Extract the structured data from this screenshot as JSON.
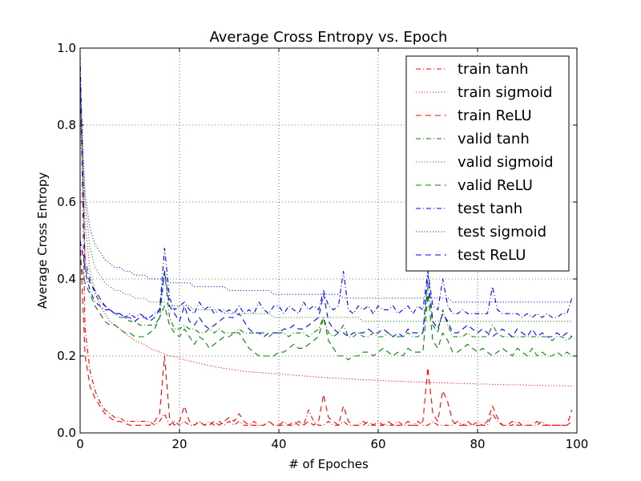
{
  "chart_data": {
    "type": "line",
    "title": "Average Cross Entropy vs. Epoch",
    "xlabel": "# of Epoches",
    "ylabel": "Average Cross Entropy",
    "xlim": [
      0,
      100
    ],
    "ylim": [
      0.0,
      1.0
    ],
    "grid": true,
    "legend_position": "top-right",
    "x_ticks": [
      "0",
      "20",
      "40",
      "60",
      "80",
      "100"
    ],
    "y_ticks": [
      "0.0",
      "0.2",
      "0.4",
      "0.6",
      "0.8",
      "1.0"
    ],
    "x": [
      0,
      1,
      2,
      3,
      4,
      5,
      6,
      7,
      8,
      9,
      10,
      11,
      12,
      13,
      14,
      15,
      16,
      17,
      18,
      19,
      20,
      21,
      22,
      23,
      24,
      25,
      26,
      27,
      28,
      29,
      30,
      31,
      32,
      33,
      34,
      35,
      36,
      37,
      38,
      39,
      40,
      41,
      42,
      43,
      44,
      45,
      46,
      47,
      48,
      49,
      50,
      51,
      52,
      53,
      54,
      55,
      56,
      57,
      58,
      59,
      60,
      61,
      62,
      63,
      64,
      65,
      66,
      67,
      68,
      69,
      70,
      71,
      72,
      73,
      74,
      75,
      76,
      77,
      78,
      79,
      80,
      81,
      82,
      83,
      84,
      85,
      86,
      87,
      88,
      89,
      90,
      91,
      92,
      93,
      94,
      95,
      96,
      97,
      98,
      99
    ],
    "series": [
      {
        "name": "train tanh",
        "color": "#ff0000",
        "dash": "dashdot",
        "values": [
          0.95,
          0.27,
          0.16,
          0.11,
          0.08,
          0.06,
          0.05,
          0.04,
          0.04,
          0.03,
          0.03,
          0.03,
          0.03,
          0.03,
          0.03,
          0.02,
          0.03,
          0.05,
          0.02,
          0.03,
          0.02,
          0.03,
          0.02,
          0.02,
          0.03,
          0.02,
          0.03,
          0.02,
          0.03,
          0.02,
          0.03,
          0.02,
          0.03,
          0.02,
          0.02,
          0.03,
          0.02,
          0.02,
          0.03,
          0.02,
          0.02,
          0.03,
          0.02,
          0.02,
          0.03,
          0.02,
          0.06,
          0.03,
          0.02,
          0.02,
          0.03,
          0.02,
          0.02,
          0.03,
          0.02,
          0.02,
          0.02,
          0.03,
          0.02,
          0.02,
          0.03,
          0.02,
          0.02,
          0.02,
          0.03,
          0.02,
          0.02,
          0.02,
          0.03,
          0.02,
          0.02,
          0.03,
          0.02,
          0.02,
          0.02,
          0.02,
          0.03,
          0.02,
          0.02,
          0.02,
          0.03,
          0.02,
          0.02,
          0.05,
          0.03,
          0.02,
          0.02,
          0.02,
          0.03,
          0.02,
          0.02,
          0.02,
          0.02,
          0.03,
          0.02,
          0.02,
          0.02,
          0.02,
          0.02,
          0.03
        ]
      },
      {
        "name": "train sigmoid",
        "color": "#ff0000",
        "dash": "dotted",
        "values": [
          0.82,
          0.55,
          0.42,
          0.37,
          0.33,
          0.31,
          0.29,
          0.28,
          0.27,
          0.26,
          0.25,
          0.24,
          0.235,
          0.23,
          0.22,
          0.215,
          0.21,
          0.205,
          0.2,
          0.198,
          0.195,
          0.19,
          0.187,
          0.184,
          0.181,
          0.178,
          0.175,
          0.172,
          0.17,
          0.168,
          0.166,
          0.164,
          0.162,
          0.16,
          0.159,
          0.158,
          0.157,
          0.156,
          0.155,
          0.154,
          0.153,
          0.152,
          0.151,
          0.15,
          0.149,
          0.148,
          0.147,
          0.146,
          0.145,
          0.144,
          0.143,
          0.143,
          0.142,
          0.141,
          0.14,
          0.14,
          0.139,
          0.138,
          0.138,
          0.137,
          0.136,
          0.136,
          0.135,
          0.135,
          0.134,
          0.134,
          0.133,
          0.133,
          0.132,
          0.132,
          0.131,
          0.131,
          0.13,
          0.13,
          0.13,
          0.129,
          0.129,
          0.128,
          0.128,
          0.128,
          0.127,
          0.127,
          0.127,
          0.126,
          0.126,
          0.126,
          0.125,
          0.125,
          0.125,
          0.125,
          0.124,
          0.124,
          0.124,
          0.124,
          0.123,
          0.123,
          0.123,
          0.123,
          0.122,
          0.122
        ]
      },
      {
        "name": "train ReLU",
        "color": "#ff0000",
        "dash": "dashed",
        "values": [
          0.5,
          0.2,
          0.12,
          0.09,
          0.07,
          0.05,
          0.04,
          0.03,
          0.03,
          0.025,
          0.02,
          0.02,
          0.02,
          0.02,
          0.02,
          0.03,
          0.05,
          0.2,
          0.04,
          0.02,
          0.03,
          0.07,
          0.03,
          0.02,
          0.03,
          0.02,
          0.02,
          0.03,
          0.02,
          0.03,
          0.04,
          0.03,
          0.05,
          0.03,
          0.02,
          0.02,
          0.02,
          0.02,
          0.03,
          0.02,
          0.02,
          0.02,
          0.02,
          0.03,
          0.02,
          0.02,
          0.03,
          0.02,
          0.03,
          0.1,
          0.04,
          0.03,
          0.02,
          0.07,
          0.03,
          0.02,
          0.02,
          0.02,
          0.03,
          0.02,
          0.02,
          0.02,
          0.03,
          0.02,
          0.02,
          0.02,
          0.03,
          0.02,
          0.02,
          0.03,
          0.17,
          0.05,
          0.03,
          0.11,
          0.08,
          0.03,
          0.02,
          0.02,
          0.03,
          0.02,
          0.02,
          0.02,
          0.03,
          0.07,
          0.04,
          0.02,
          0.02,
          0.03,
          0.02,
          0.02,
          0.02,
          0.02,
          0.03,
          0.02,
          0.02,
          0.02,
          0.02,
          0.02,
          0.02,
          0.06
        ]
      },
      {
        "name": "valid tanh",
        "color": "#008000",
        "dash": "dashdot",
        "values": [
          0.92,
          0.45,
          0.4,
          0.36,
          0.34,
          0.33,
          0.32,
          0.31,
          0.3,
          0.3,
          0.29,
          0.29,
          0.28,
          0.28,
          0.28,
          0.28,
          0.3,
          0.42,
          0.3,
          0.27,
          0.27,
          0.28,
          0.27,
          0.27,
          0.26,
          0.26,
          0.27,
          0.26,
          0.27,
          0.26,
          0.26,
          0.26,
          0.27,
          0.26,
          0.26,
          0.26,
          0.26,
          0.26,
          0.25,
          0.26,
          0.26,
          0.26,
          0.25,
          0.26,
          0.26,
          0.26,
          0.25,
          0.26,
          0.27,
          0.3,
          0.26,
          0.25,
          0.26,
          0.28,
          0.25,
          0.25,
          0.26,
          0.25,
          0.25,
          0.26,
          0.25,
          0.25,
          0.26,
          0.25,
          0.25,
          0.25,
          0.26,
          0.25,
          0.25,
          0.26,
          0.38,
          0.28,
          0.26,
          0.32,
          0.28,
          0.25,
          0.25,
          0.25,
          0.26,
          0.25,
          0.25,
          0.25,
          0.25,
          0.28,
          0.26,
          0.25,
          0.25,
          0.25,
          0.25,
          0.25,
          0.25,
          0.25,
          0.25,
          0.25,
          0.25,
          0.24,
          0.25,
          0.25,
          0.24,
          0.25
        ]
      },
      {
        "name": "valid sigmoid",
        "color": "#008000",
        "dash": "dotted",
        "values": [
          0.85,
          0.6,
          0.48,
          0.43,
          0.41,
          0.39,
          0.38,
          0.37,
          0.37,
          0.36,
          0.36,
          0.35,
          0.35,
          0.35,
          0.34,
          0.34,
          0.34,
          0.34,
          0.33,
          0.33,
          0.33,
          0.33,
          0.33,
          0.32,
          0.32,
          0.32,
          0.32,
          0.32,
          0.32,
          0.32,
          0.31,
          0.31,
          0.31,
          0.31,
          0.31,
          0.31,
          0.31,
          0.31,
          0.31,
          0.3,
          0.3,
          0.3,
          0.3,
          0.3,
          0.3,
          0.3,
          0.3,
          0.3,
          0.3,
          0.3,
          0.3,
          0.3,
          0.3,
          0.3,
          0.3,
          0.3,
          0.3,
          0.29,
          0.29,
          0.29,
          0.29,
          0.29,
          0.29,
          0.29,
          0.29,
          0.29,
          0.29,
          0.29,
          0.29,
          0.29,
          0.29,
          0.29,
          0.29,
          0.29,
          0.29,
          0.29,
          0.29,
          0.29,
          0.29,
          0.29,
          0.29,
          0.29,
          0.29,
          0.29,
          0.29,
          0.29,
          0.29,
          0.29,
          0.29,
          0.29,
          0.29,
          0.29,
          0.29,
          0.29,
          0.29,
          0.29,
          0.29,
          0.29,
          0.29,
          0.29
        ]
      },
      {
        "name": "valid ReLU",
        "color": "#008000",
        "dash": "dashed",
        "values": [
          0.45,
          0.39,
          0.36,
          0.33,
          0.31,
          0.29,
          0.28,
          0.28,
          0.27,
          0.26,
          0.26,
          0.25,
          0.25,
          0.25,
          0.26,
          0.27,
          0.3,
          0.33,
          0.28,
          0.26,
          0.25,
          0.27,
          0.25,
          0.23,
          0.25,
          0.24,
          0.22,
          0.23,
          0.24,
          0.25,
          0.25,
          0.26,
          0.26,
          0.24,
          0.22,
          0.21,
          0.2,
          0.2,
          0.2,
          0.2,
          0.21,
          0.21,
          0.22,
          0.23,
          0.22,
          0.22,
          0.23,
          0.24,
          0.25,
          0.3,
          0.24,
          0.22,
          0.2,
          0.2,
          0.19,
          0.2,
          0.2,
          0.21,
          0.21,
          0.2,
          0.21,
          0.22,
          0.21,
          0.2,
          0.21,
          0.2,
          0.22,
          0.21,
          0.21,
          0.21,
          0.36,
          0.24,
          0.22,
          0.26,
          0.24,
          0.21,
          0.21,
          0.22,
          0.23,
          0.22,
          0.21,
          0.22,
          0.21,
          0.2,
          0.21,
          0.22,
          0.21,
          0.2,
          0.22,
          0.21,
          0.2,
          0.22,
          0.2,
          0.21,
          0.2,
          0.2,
          0.21,
          0.2,
          0.21,
          0.2
        ]
      },
      {
        "name": "test tanh",
        "color": "#0000ff",
        "dash": "dashdot",
        "values": [
          0.98,
          0.42,
          0.37,
          0.34,
          0.33,
          0.32,
          0.32,
          0.31,
          0.31,
          0.3,
          0.31,
          0.3,
          0.31,
          0.3,
          0.3,
          0.31,
          0.32,
          0.48,
          0.35,
          0.32,
          0.33,
          0.34,
          0.32,
          0.31,
          0.34,
          0.32,
          0.33,
          0.31,
          0.32,
          0.31,
          0.32,
          0.31,
          0.33,
          0.31,
          0.32,
          0.31,
          0.34,
          0.32,
          0.31,
          0.33,
          0.33,
          0.31,
          0.33,
          0.32,
          0.31,
          0.34,
          0.32,
          0.33,
          0.32,
          0.37,
          0.33,
          0.32,
          0.33,
          0.42,
          0.32,
          0.31,
          0.33,
          0.32,
          0.33,
          0.31,
          0.33,
          0.32,
          0.32,
          0.33,
          0.31,
          0.32,
          0.33,
          0.31,
          0.33,
          0.32,
          0.42,
          0.33,
          0.32,
          0.4,
          0.33,
          0.31,
          0.31,
          0.32,
          0.31,
          0.31,
          0.31,
          0.31,
          0.31,
          0.38,
          0.32,
          0.31,
          0.31,
          0.31,
          0.31,
          0.3,
          0.31,
          0.3,
          0.31,
          0.3,
          0.31,
          0.3,
          0.3,
          0.31,
          0.31,
          0.35
        ]
      },
      {
        "name": "test sigmoid",
        "color": "#0000ff",
        "dash": "dotted",
        "values": [
          0.92,
          0.62,
          0.53,
          0.49,
          0.47,
          0.45,
          0.44,
          0.43,
          0.43,
          0.42,
          0.42,
          0.41,
          0.41,
          0.41,
          0.4,
          0.4,
          0.4,
          0.4,
          0.39,
          0.39,
          0.39,
          0.39,
          0.39,
          0.38,
          0.38,
          0.38,
          0.38,
          0.38,
          0.38,
          0.38,
          0.37,
          0.37,
          0.37,
          0.37,
          0.37,
          0.37,
          0.37,
          0.37,
          0.37,
          0.36,
          0.36,
          0.36,
          0.36,
          0.36,
          0.36,
          0.36,
          0.36,
          0.36,
          0.36,
          0.36,
          0.36,
          0.36,
          0.36,
          0.35,
          0.35,
          0.35,
          0.35,
          0.35,
          0.35,
          0.35,
          0.35,
          0.35,
          0.35,
          0.35,
          0.35,
          0.35,
          0.35,
          0.35,
          0.35,
          0.35,
          0.35,
          0.35,
          0.35,
          0.35,
          0.35,
          0.34,
          0.34,
          0.34,
          0.34,
          0.34,
          0.34,
          0.34,
          0.34,
          0.34,
          0.34,
          0.34,
          0.34,
          0.34,
          0.34,
          0.34,
          0.34,
          0.34,
          0.34,
          0.34,
          0.34,
          0.34,
          0.34,
          0.34,
          0.34,
          0.34
        ]
      },
      {
        "name": "test ReLU",
        "color": "#0000ff",
        "dash": "dashed",
        "values": [
          0.5,
          0.43,
          0.39,
          0.37,
          0.35,
          0.33,
          0.32,
          0.31,
          0.31,
          0.3,
          0.3,
          0.29,
          0.3,
          0.3,
          0.29,
          0.3,
          0.32,
          0.42,
          0.33,
          0.31,
          0.29,
          0.33,
          0.29,
          0.28,
          0.3,
          0.28,
          0.27,
          0.28,
          0.29,
          0.3,
          0.3,
          0.3,
          0.31,
          0.29,
          0.27,
          0.26,
          0.26,
          0.25,
          0.26,
          0.26,
          0.26,
          0.27,
          0.27,
          0.28,
          0.27,
          0.27,
          0.28,
          0.29,
          0.3,
          0.36,
          0.29,
          0.27,
          0.26,
          0.26,
          0.25,
          0.26,
          0.26,
          0.26,
          0.27,
          0.26,
          0.26,
          0.27,
          0.26,
          0.25,
          0.26,
          0.25,
          0.27,
          0.26,
          0.26,
          0.26,
          0.41,
          0.29,
          0.27,
          0.31,
          0.29,
          0.26,
          0.26,
          0.27,
          0.28,
          0.27,
          0.26,
          0.27,
          0.26,
          0.25,
          0.26,
          0.27,
          0.26,
          0.25,
          0.27,
          0.26,
          0.25,
          0.27,
          0.25,
          0.26,
          0.25,
          0.25,
          0.26,
          0.25,
          0.26,
          0.25
        ]
      }
    ]
  }
}
